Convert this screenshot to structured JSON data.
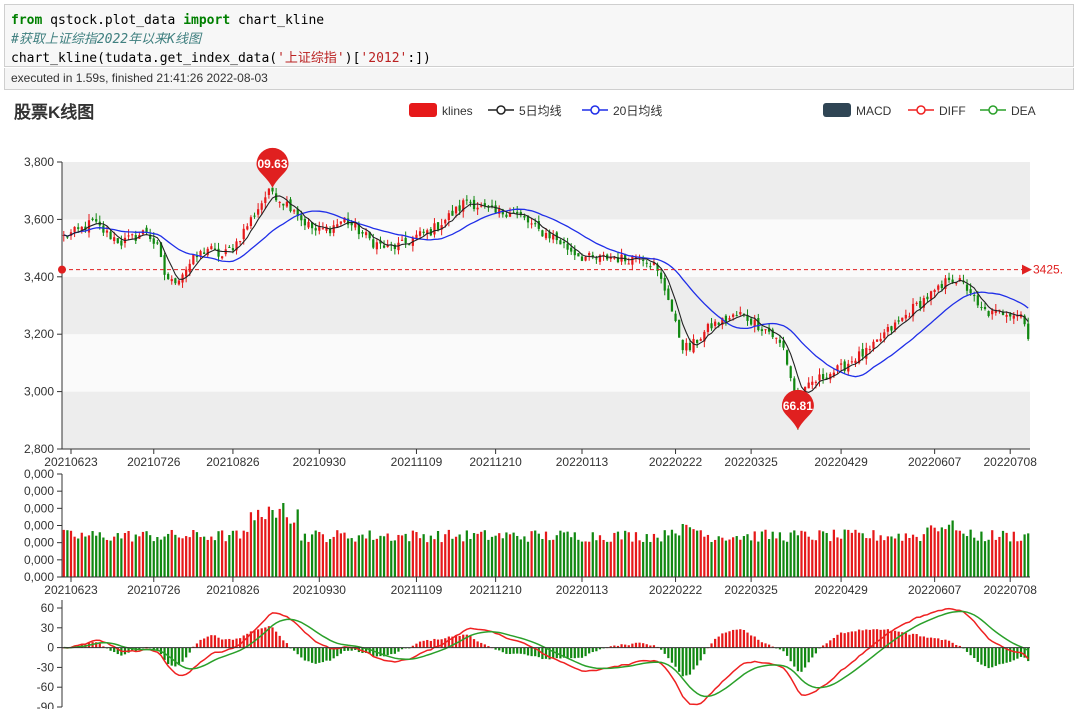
{
  "cell": {
    "code_line1_kw1": "from",
    "code_line1_mid": " qstock.plot_data ",
    "code_line1_kw2": "import",
    "code_line1_end": " chart_kline",
    "code_line2": "#获取上证综指2022年以来K线图",
    "code_line3_a": "chart_kline(tudata.get_index_data(",
    "code_line3_s1": "'上证综指'",
    "code_line3_b": ")[",
    "code_line3_s2": "'2012'",
    "code_line3_c": ":])",
    "exec_status": "executed in 1.59s, finished 21:41:26 2022-08-03"
  },
  "chart_data": {
    "type": "candlestick",
    "title": "股票K线图",
    "legend_top": [
      "klines",
      "5日均线",
      "20日均线"
    ],
    "legend_right": [
      "MACD",
      "DIFF",
      "DEA"
    ],
    "colors": {
      "up": "#e6191a",
      "down": "#118811",
      "ma5": "#222222",
      "ma20": "#1f2ee8",
      "diff": "#ef2121",
      "dea": "#2aa02a",
      "macd_legend": "#2f4554",
      "markline": "#e02020"
    },
    "x_ticks": [
      "20210623",
      "20210726",
      "20210826",
      "20210930",
      "20211109",
      "20211210",
      "20220113",
      "20220222",
      "20220325",
      "20220429",
      "20220607",
      "20220708"
    ],
    "price": {
      "ylim": [
        2800,
        3800
      ],
      "yticks": [
        "2,800",
        "3,000",
        "3,200",
        "3,400",
        "3,600",
        "3,800"
      ],
      "max_label": "09.63",
      "max_value": 3709.63,
      "min_label": "66.81",
      "min_value": 2866.81,
      "avg_line_label": "3425.",
      "avg_line_value": 3425,
      "anchors": [
        [
          0,
          3540
        ],
        [
          4,
          3560
        ],
        [
          8,
          3590
        ],
        [
          12,
          3550
        ],
        [
          16,
          3520
        ],
        [
          20,
          3540
        ],
        [
          23,
          3560
        ],
        [
          26,
          3500
        ],
        [
          28,
          3410
        ],
        [
          30,
          3380
        ],
        [
          32,
          3400
        ],
        [
          36,
          3460
        ],
        [
          40,
          3500
        ],
        [
          44,
          3470
        ],
        [
          48,
          3520
        ],
        [
          52,
          3600
        ],
        [
          56,
          3680
        ],
        [
          58,
          3700
        ],
        [
          60,
          3670
        ],
        [
          64,
          3640
        ],
        [
          66,
          3600
        ],
        [
          70,
          3560
        ],
        [
          74,
          3570
        ],
        [
          78,
          3600
        ],
        [
          82,
          3560
        ],
        [
          86,
          3520
        ],
        [
          90,
          3500
        ],
        [
          94,
          3510
        ],
        [
          98,
          3540
        ],
        [
          102,
          3560
        ],
        [
          106,
          3600
        ],
        [
          110,
          3640
        ],
        [
          112,
          3670
        ],
        [
          116,
          3640
        ],
        [
          120,
          3620
        ],
        [
          124,
          3630
        ],
        [
          128,
          3600
        ],
        [
          132,
          3560
        ],
        [
          136,
          3540
        ],
        [
          140,
          3500
        ],
        [
          144,
          3470
        ],
        [
          148,
          3460
        ],
        [
          152,
          3470
        ],
        [
          156,
          3460
        ],
        [
          160,
          3480
        ],
        [
          164,
          3440
        ],
        [
          168,
          3330
        ],
        [
          170,
          3230
        ],
        [
          172,
          3160
        ],
        [
          174,
          3150
        ],
        [
          176,
          3180
        ],
        [
          180,
          3230
        ],
        [
          184,
          3250
        ],
        [
          188,
          3270
        ],
        [
          192,
          3240
        ],
        [
          196,
          3210
        ],
        [
          200,
          3150
        ],
        [
          202,
          3050
        ],
        [
          204,
          2960
        ],
        [
          206,
          3000
        ],
        [
          208,
          3030
        ],
        [
          212,
          3060
        ],
        [
          216,
          3080
        ],
        [
          220,
          3120
        ],
        [
          224,
          3140
        ],
        [
          228,
          3200
        ],
        [
          232,
          3240
        ],
        [
          236,
          3290
        ],
        [
          240,
          3330
        ],
        [
          244,
          3360
        ],
        [
          246,
          3400
        ],
        [
          248,
          3390
        ],
        [
          252,
          3350
        ],
        [
          254,
          3290
        ],
        [
          258,
          3270
        ],
        [
          262,
          3280
        ],
        [
          266,
          3270
        ],
        [
          268,
          3200
        ]
      ]
    },
    "volume": {
      "ylim": [
        0,
        900000
      ],
      "yticks": [
        "0,000",
        "0,000",
        "0,000",
        "0,000",
        "0,000",
        "0,000",
        "0,000"
      ]
    },
    "macd": {
      "ylim": [
        -90,
        60
      ],
      "yticks": [
        "60",
        "30",
        "0",
        "-30",
        "-60",
        "-90"
      ]
    }
  }
}
